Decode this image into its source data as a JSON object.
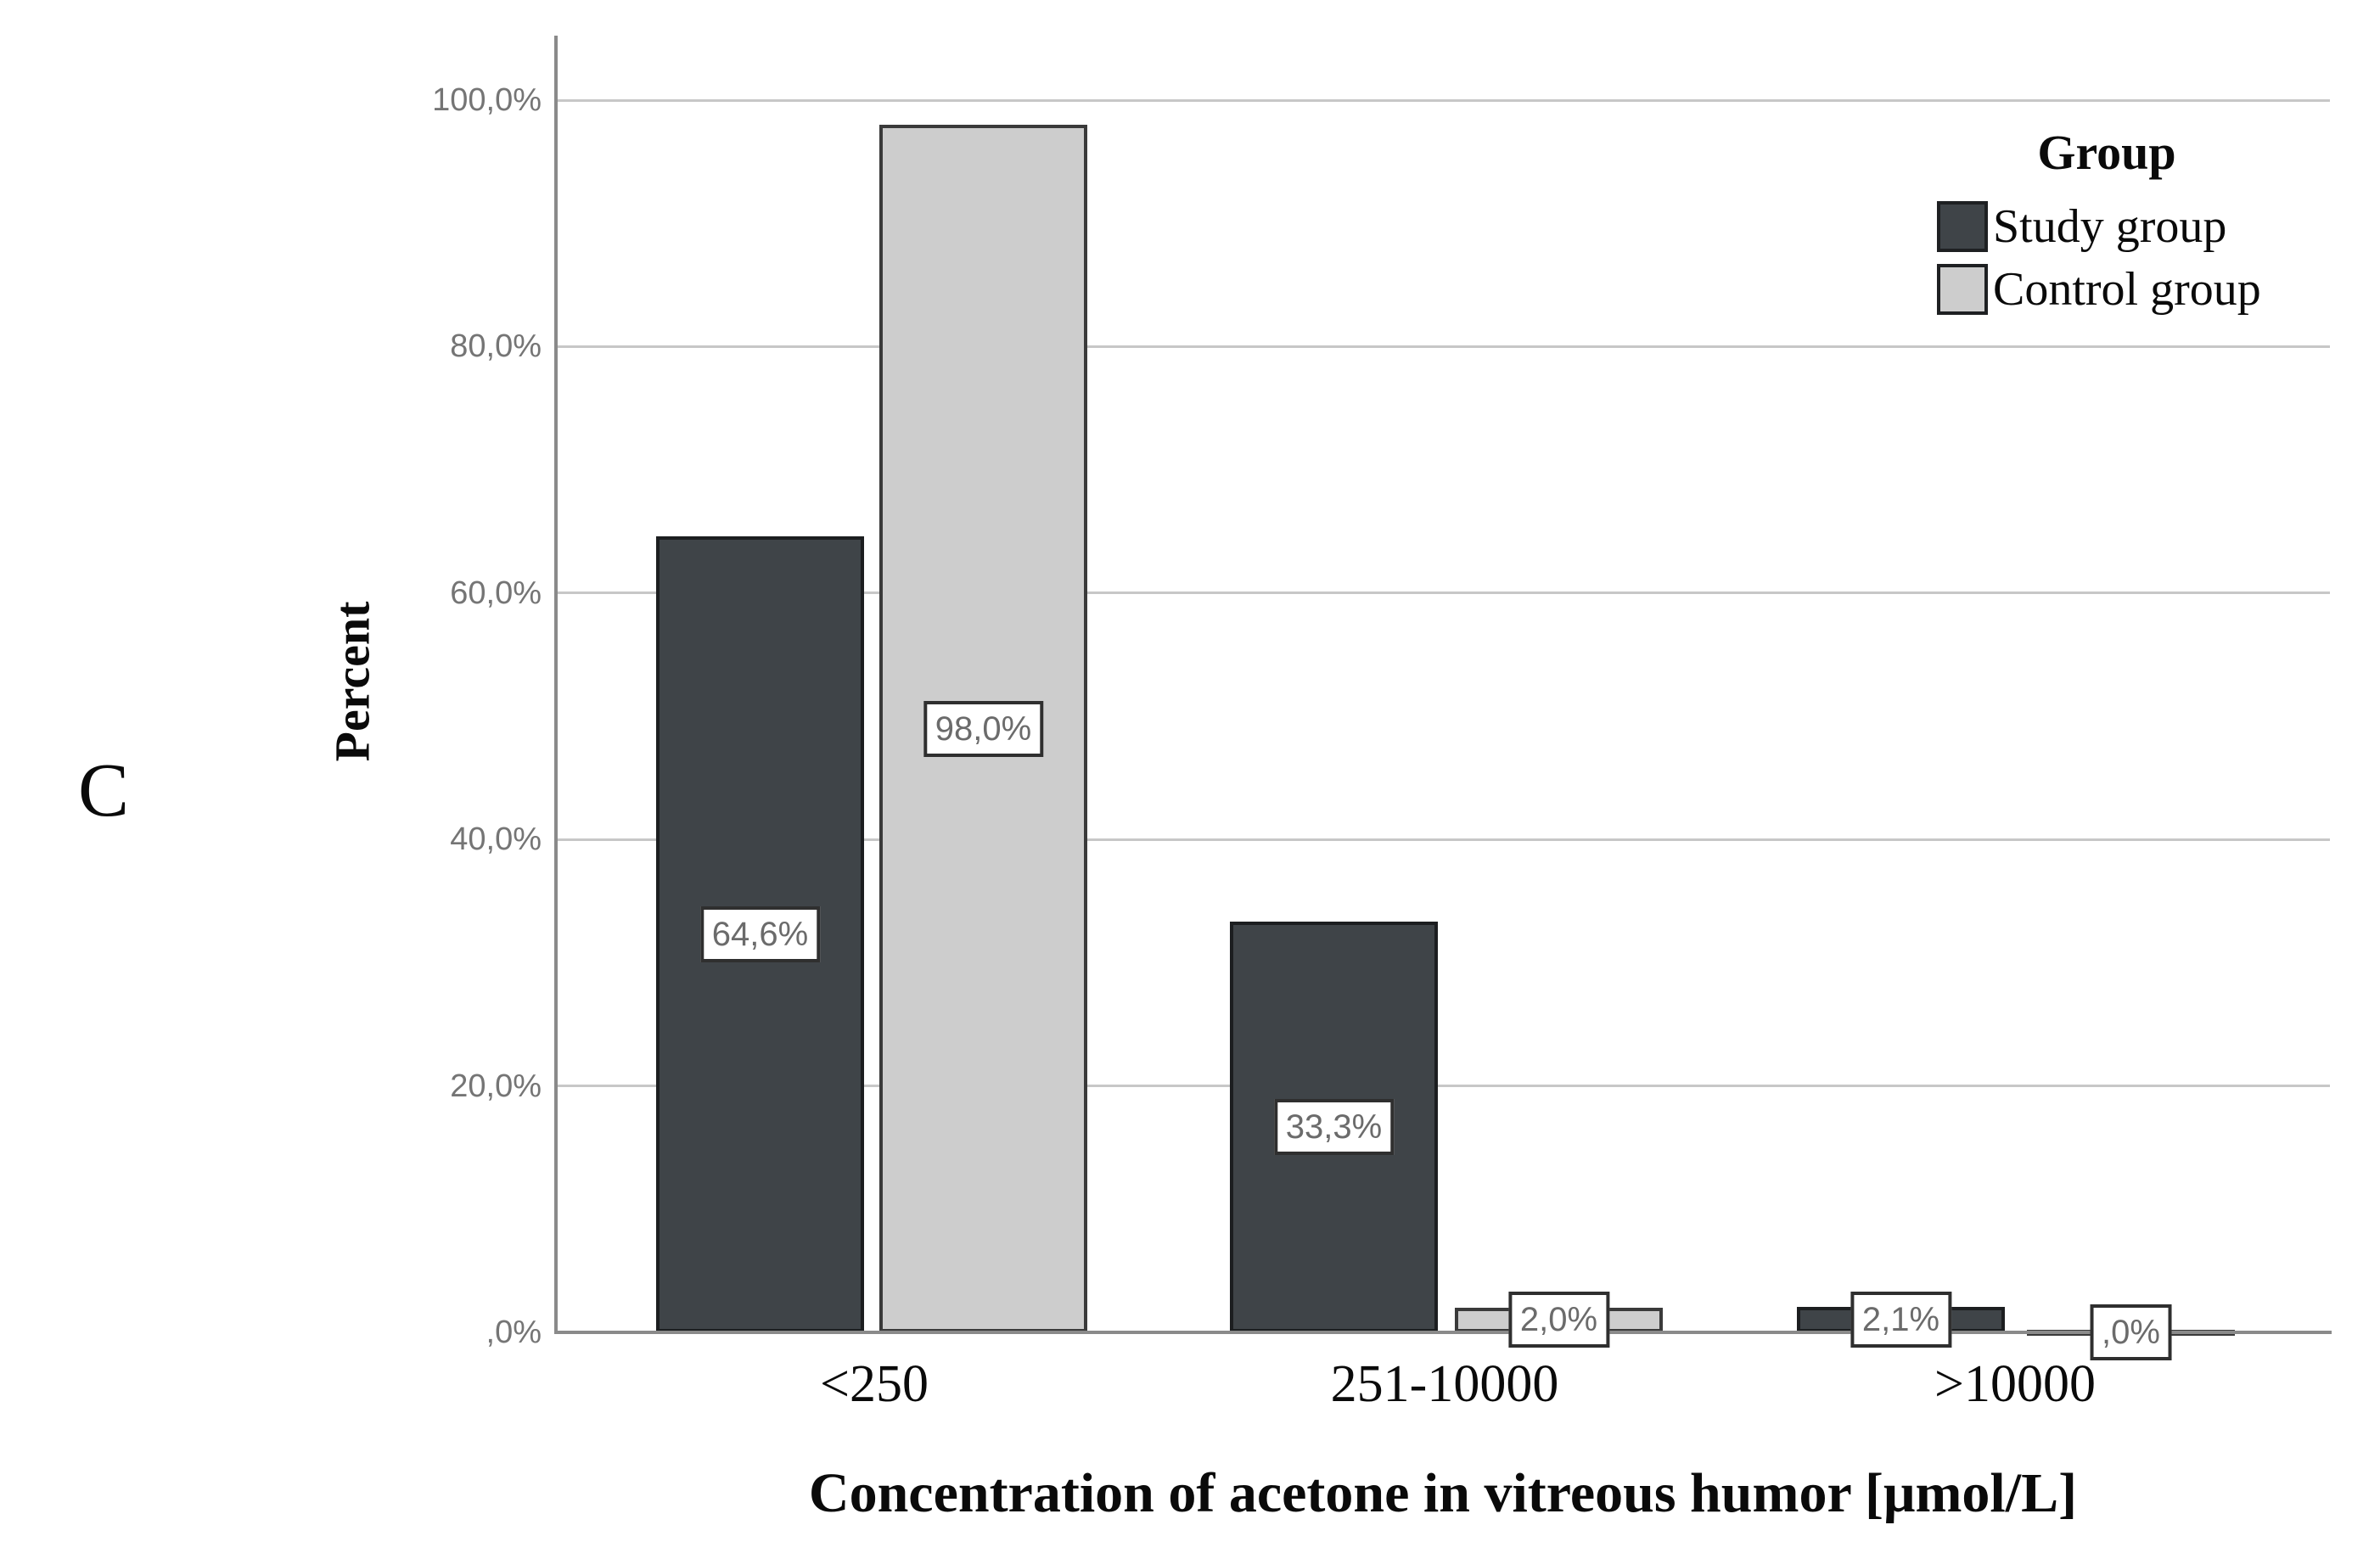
{
  "chart_data": {
    "type": "bar",
    "panel_label": "C",
    "title": "",
    "xlabel": "Concentration of acetone in vitreous humor [μmol/L]",
    "ylabel": "Percent",
    "categories": [
      "<250",
      "251-10000",
      ">10000"
    ],
    "series": [
      {
        "name": "Study group",
        "values": [
          64.6,
          33.3,
          2.1
        ],
        "value_labels": [
          "64,6%",
          "33,3%",
          "2,1%"
        ],
        "color": "#3f4448",
        "border_color": "#1c1e20"
      },
      {
        "name": "Control group",
        "values": [
          98.0,
          2.0,
          0.0
        ],
        "value_labels": [
          "98,0%",
          "2,0%",
          ",0%"
        ],
        "color": "#cdcdcd",
        "border_color": "#3a3a3a"
      }
    ],
    "y_ticks": [
      {
        "label": "100,0%",
        "value": 100
      },
      {
        "label": "80,0%",
        "value": 80
      },
      {
        "label": "60,0%",
        "value": 60
      },
      {
        "label": "40,0%",
        "value": 40
      },
      {
        "label": "20,0%",
        "value": 20
      },
      {
        "label": ",0%",
        "value": 0
      }
    ],
    "ylim": [
      0,
      100
    ],
    "grid": true,
    "legend_title": "Group",
    "legend_position": "top-right"
  }
}
